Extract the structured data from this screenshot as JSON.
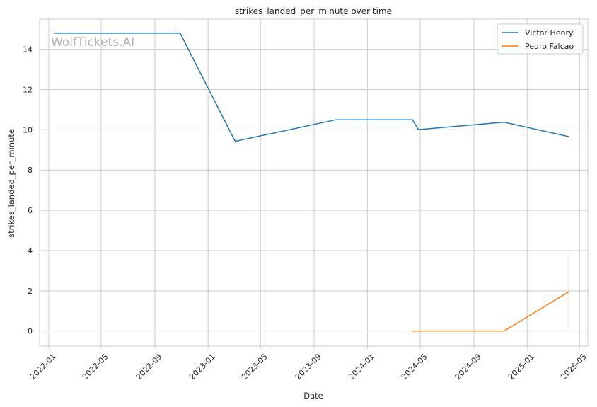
{
  "chart_data": {
    "type": "line",
    "title": "strikes_landed_per_minute over time",
    "xlabel": "Date",
    "ylabel": "strikes_landed_per_minute",
    "watermark": "WolfTickets.AI",
    "x_ticks": [
      "2022-01",
      "2022-05",
      "2022-09",
      "2023-01",
      "2023-05",
      "2023-09",
      "2024-01",
      "2024-05",
      "2024-09",
      "2025-01",
      "2025-05"
    ],
    "y_ticks": [
      0,
      2,
      4,
      6,
      8,
      10,
      12,
      14
    ],
    "xlim": [
      "2021-12-11",
      "2025-05-20"
    ],
    "ylim": [
      -0.75,
      15.5
    ],
    "grid": true,
    "legend_position": "top-right",
    "series": [
      {
        "name": "Victor Henry",
        "color": "#1f77b4",
        "x": [
          "2022-01-15",
          "2022-10-29",
          "2023-03-04",
          "2023-10-21",
          "2024-04-13",
          "2024-04-27",
          "2024-11-09",
          "2025-04-05"
        ],
        "y": [
          14.8,
          14.8,
          9.43,
          10.5,
          10.5,
          10.01,
          10.38,
          9.67
        ]
      },
      {
        "name": "Pedro Falcao",
        "color": "#ff7f0e",
        "x": [
          "2024-04-13",
          "2024-11-09",
          "2025-04-05"
        ],
        "y": [
          0,
          0,
          1.93
        ],
        "band": {
          "x": "2025-04-05",
          "low": 0,
          "high": 3.86
        }
      }
    ]
  }
}
